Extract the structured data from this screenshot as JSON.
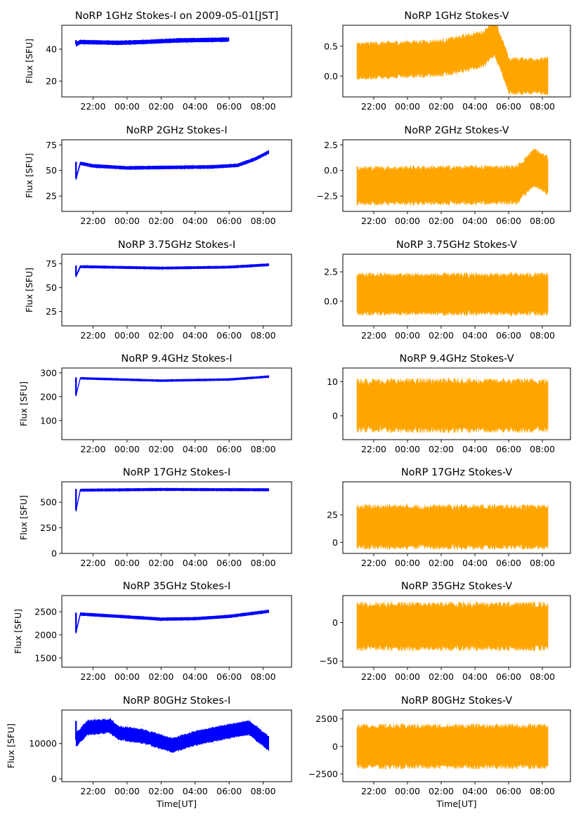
{
  "figure": {
    "x_tick_labels": [
      "22:00",
      "00:00",
      "02:00",
      "04:00",
      "06:00",
      "08:00"
    ],
    "xlabel": "Time[UT]",
    "ylabel_left": "Flux [SFU]",
    "colors": {
      "stokes_i": "#0000ff",
      "stokes_v": "#ffa500"
    }
  },
  "chart_data": [
    {
      "type": "scatter",
      "title": "NoRP 1GHz Stokes-I on 2009-05-01[JST]",
      "series": [
        {
          "name": "Stokes-I"
        }
      ],
      "ylabel": "Flux [SFU]",
      "xlabel": "",
      "xlim": [
        "2009-04-30T20:10",
        "2009-05-01T09:40"
      ],
      "ylim": [
        10,
        55
      ],
      "yticks": [
        20,
        40
      ],
      "data_range": [
        "2009-04-30T21:00",
        "2009-05-01T06:00"
      ],
      "level": [
        {
          "t": "2009-04-30T21:00",
          "v": 43
        },
        {
          "t": "2009-04-30T21:15",
          "v": 44.5
        },
        {
          "t": "2009-04-30T23:30",
          "v": 44
        },
        {
          "t": "2009-05-01T01:00",
          "v": 44.5
        },
        {
          "t": "2009-05-01T03:00",
          "v": 45.5
        },
        {
          "t": "2009-05-01T06:00",
          "v": 46
        }
      ],
      "spread": 1.2
    },
    {
      "type": "scatter",
      "title": "NoRP 1GHz Stokes-V",
      "series": [
        {
          "name": "Stokes-V"
        }
      ],
      "ylabel": "",
      "xlabel": "",
      "xlim": [
        "2009-04-30T20:10",
        "2009-05-01T09:40"
      ],
      "ylim": [
        -0.35,
        0.85
      ],
      "yticks": [
        0.0,
        0.5
      ],
      "data_range": [
        "2009-04-30T21:00",
        "2009-05-01T08:20"
      ],
      "level": [
        {
          "t": "2009-04-30T21:00",
          "v": 0.25
        },
        {
          "t": "2009-05-01T02:00",
          "v": 0.3
        },
        {
          "t": "2009-05-01T04:30",
          "v": 0.45
        },
        {
          "t": "2009-05-01T05:10",
          "v": 0.65
        },
        {
          "t": "2009-05-01T05:55",
          "v": 0.1
        },
        {
          "t": "2009-05-01T06:00",
          "v": 0.0
        },
        {
          "t": "2009-05-01T08:20",
          "v": 0.0
        }
      ],
      "spread": 0.28
    },
    {
      "type": "scatter",
      "title": "NoRP 2GHz Stokes-I",
      "series": [
        {
          "name": "Stokes-I"
        }
      ],
      "ylabel": "Flux [SFU]",
      "xlabel": "",
      "xlim": [
        "2009-04-30T20:10",
        "2009-05-01T09:40"
      ],
      "ylim": [
        10,
        80
      ],
      "yticks": [
        25,
        50,
        75
      ],
      "data_range": [
        "2009-04-30T21:00",
        "2009-05-01T08:20"
      ],
      "level": [
        {
          "t": "2009-04-30T21:00",
          "v": 42
        },
        {
          "t": "2009-04-30T21:15",
          "v": 57
        },
        {
          "t": "2009-04-30T22:00",
          "v": 54.5
        },
        {
          "t": "2009-05-01T00:00",
          "v": 52.5
        },
        {
          "t": "2009-05-01T05:00",
          "v": 53.5
        },
        {
          "t": "2009-05-01T06:30",
          "v": 55
        },
        {
          "t": "2009-05-01T07:30",
          "v": 61
        },
        {
          "t": "2009-05-01T08:20",
          "v": 68
        }
      ],
      "spread": 1.5
    },
    {
      "type": "scatter",
      "title": "NoRP 2GHz Stokes-V",
      "series": [
        {
          "name": "Stokes-V"
        }
      ],
      "ylabel": "",
      "xlabel": "",
      "xlim": [
        "2009-04-30T20:10",
        "2009-05-01T09:40"
      ],
      "ylim": [
        -4,
        3
      ],
      "yticks": [
        -2.5,
        0.0,
        2.5
      ],
      "data_range": [
        "2009-04-30T21:00",
        "2009-05-01T08:20"
      ],
      "level": [
        {
          "t": "2009-04-30T21:00",
          "v": -1.5
        },
        {
          "t": "2009-05-01T06:30",
          "v": -1.4
        },
        {
          "t": "2009-05-01T07:30",
          "v": 0.3
        },
        {
          "t": "2009-05-01T08:20",
          "v": -0.5
        }
      ],
      "spread": 1.7
    },
    {
      "type": "scatter",
      "title": "NoRP 3.75GHz Stokes-I",
      "series": [
        {
          "name": "Stokes-I"
        }
      ],
      "ylabel": "Flux [SFU]",
      "xlabel": "",
      "xlim": [
        "2009-04-30T20:10",
        "2009-05-01T09:40"
      ],
      "ylim": [
        10,
        85
      ],
      "yticks": [
        25,
        50,
        75
      ],
      "data_range": [
        "2009-04-30T21:00",
        "2009-05-01T08:20"
      ],
      "level": [
        {
          "t": "2009-04-30T21:00",
          "v": 62
        },
        {
          "t": "2009-04-30T21:15",
          "v": 72
        },
        {
          "t": "2009-05-01T02:00",
          "v": 70.5
        },
        {
          "t": "2009-05-01T06:00",
          "v": 71.5
        },
        {
          "t": "2009-05-01T08:20",
          "v": 74
        }
      ],
      "spread": 1.2
    },
    {
      "type": "scatter",
      "title": "NoRP 3.75GHz Stokes-V",
      "series": [
        {
          "name": "Stokes-V"
        }
      ],
      "ylabel": "",
      "xlabel": "",
      "xlim": [
        "2009-04-30T20:10",
        "2009-05-01T09:40"
      ],
      "ylim": [
        -2.1,
        4.0
      ],
      "yticks": [
        0.0,
        2.5
      ],
      "data_range": [
        "2009-04-30T21:00",
        "2009-05-01T08:20"
      ],
      "level": [
        {
          "t": "2009-04-30T21:00",
          "v": 0.6
        },
        {
          "t": "2009-05-01T08:20",
          "v": 0.6
        }
      ],
      "spread": 1.6
    },
    {
      "type": "scatter",
      "title": "NoRP 9.4GHz Stokes-I",
      "series": [
        {
          "name": "Stokes-I"
        }
      ],
      "ylabel": "Flux [SFU]",
      "xlabel": "",
      "xlim": [
        "2009-04-30T20:10",
        "2009-05-01T09:40"
      ],
      "ylim": [
        20,
        320
      ],
      "yticks": [
        100,
        200,
        300
      ],
      "data_range": [
        "2009-04-30T21:00",
        "2009-05-01T08:20"
      ],
      "level": [
        {
          "t": "2009-04-30T21:00",
          "v": 205
        },
        {
          "t": "2009-04-30T21:15",
          "v": 277
        },
        {
          "t": "2009-05-01T02:00",
          "v": 267
        },
        {
          "t": "2009-05-01T06:00",
          "v": 272
        },
        {
          "t": "2009-05-01T08:20",
          "v": 284
        }
      ],
      "spread": 4
    },
    {
      "type": "scatter",
      "title": "NoRP 9.4GHz Stokes-V",
      "series": [
        {
          "name": "Stokes-V"
        }
      ],
      "ylabel": "",
      "xlabel": "",
      "xlim": [
        "2009-04-30T20:10",
        "2009-05-01T09:40"
      ],
      "ylim": [
        -7,
        14
      ],
      "yticks": [
        0,
        10
      ],
      "data_range": [
        "2009-04-30T21:00",
        "2009-05-01T08:20"
      ],
      "level": [
        {
          "t": "2009-04-30T21:00",
          "v": 3
        },
        {
          "t": "2009-05-01T08:20",
          "v": 3
        }
      ],
      "spread": 7
    },
    {
      "type": "scatter",
      "title": "NoRP 17GHz Stokes-I",
      "series": [
        {
          "name": "Stokes-I"
        }
      ],
      "ylabel": "Flux [SFU]",
      "xlabel": "",
      "xlim": [
        "2009-04-30T20:10",
        "2009-05-01T09:40"
      ],
      "ylim": [
        0,
        700
      ],
      "yticks": [
        0,
        250,
        500
      ],
      "data_range": [
        "2009-04-30T21:00",
        "2009-05-01T08:20"
      ],
      "level": [
        {
          "t": "2009-04-30T21:00",
          "v": 420
        },
        {
          "t": "2009-04-30T21:15",
          "v": 618
        },
        {
          "t": "2009-05-01T02:00",
          "v": 625
        },
        {
          "t": "2009-05-01T08:20",
          "v": 622
        }
      ],
      "spread": 12
    },
    {
      "type": "scatter",
      "title": "NoRP 17GHz Stokes-V",
      "series": [
        {
          "name": "Stokes-V"
        }
      ],
      "ylabel": "",
      "xlabel": "",
      "xlim": [
        "2009-04-30T20:10",
        "2009-05-01T09:40"
      ],
      "ylim": [
        -10,
        55
      ],
      "yticks": [
        0,
        25
      ],
      "data_range": [
        "2009-04-30T21:00",
        "2009-05-01T08:20"
      ],
      "level": [
        {
          "t": "2009-04-30T21:00",
          "v": 14
        },
        {
          "t": "2009-05-01T08:20",
          "v": 14
        }
      ],
      "spread": 18
    },
    {
      "type": "scatter",
      "title": "NoRP 35GHz Stokes-I",
      "series": [
        {
          "name": "Stokes-I"
        }
      ],
      "ylabel": "Flux [SFU]",
      "xlabel": "",
      "xlim": [
        "2009-04-30T20:10",
        "2009-05-01T09:40"
      ],
      "ylim": [
        1300,
        2850
      ],
      "yticks": [
        1500,
        2000,
        2500
      ],
      "data_range": [
        "2009-04-30T21:00",
        "2009-05-01T08:20"
      ],
      "level": [
        {
          "t": "2009-04-30T21:00",
          "v": 2050
        },
        {
          "t": "2009-04-30T21:15",
          "v": 2450
        },
        {
          "t": "2009-04-30T23:30",
          "v": 2400
        },
        {
          "t": "2009-05-01T02:00",
          "v": 2340
        },
        {
          "t": "2009-05-01T04:00",
          "v": 2350
        },
        {
          "t": "2009-05-01T06:00",
          "v": 2400
        },
        {
          "t": "2009-05-01T08:20",
          "v": 2510
        }
      ],
      "spread": 30
    },
    {
      "type": "scatter",
      "title": "NoRP 35GHz Stokes-V",
      "series": [
        {
          "name": "Stokes-V"
        }
      ],
      "ylabel": "",
      "xlabel": "",
      "xlim": [
        "2009-04-30T20:10",
        "2009-05-01T09:40"
      ],
      "ylim": [
        -58,
        35
      ],
      "yticks": [
        -50,
        0
      ],
      "data_range": [
        "2009-04-30T21:00",
        "2009-05-01T08:20"
      ],
      "level": [
        {
          "t": "2009-04-30T21:00",
          "v": -5
        },
        {
          "t": "2009-05-01T08:20",
          "v": -5
        }
      ],
      "spread": 28
    },
    {
      "type": "scatter",
      "title": "NoRP 80GHz Stokes-I",
      "series": [
        {
          "name": "Stokes-I"
        }
      ],
      "ylabel": "Flux [SFU]",
      "xlabel": "Time[UT]",
      "xlim": [
        "2009-04-30T20:10",
        "2009-05-01T09:40"
      ],
      "ylim": [
        -800,
        19500
      ],
      "yticks": [
        0,
        10000
      ],
      "data_range": [
        "2009-04-30T21:00",
        "2009-05-01T08:20"
      ],
      "level": [
        {
          "t": "2009-04-30T21:00",
          "v": 11000
        },
        {
          "t": "2009-04-30T21:40",
          "v": 14500
        },
        {
          "t": "2009-04-30T23:00",
          "v": 15000
        },
        {
          "t": "2009-04-30T23:30",
          "v": 13000
        },
        {
          "t": "2009-05-01T01:00",
          "v": 12000
        },
        {
          "t": "2009-05-01T02:40",
          "v": 9500
        },
        {
          "t": "2009-05-01T04:00",
          "v": 11500
        },
        {
          "t": "2009-05-01T06:00",
          "v": 13500
        },
        {
          "t": "2009-05-01T07:10",
          "v": 14500
        },
        {
          "t": "2009-05-01T08:20",
          "v": 10000
        }
      ],
      "spread": 1900
    },
    {
      "type": "scatter",
      "title": "NoRP 80GHz Stokes-V",
      "series": [
        {
          "name": "Stokes-V"
        }
      ],
      "ylabel": "",
      "xlabel": "Time[UT]",
      "xlim": [
        "2009-04-30T20:10",
        "2009-05-01T09:40"
      ],
      "ylim": [
        -3200,
        3300
      ],
      "yticks": [
        -2500,
        0,
        2500
      ],
      "data_range": [
        "2009-04-30T21:00",
        "2009-05-01T08:20"
      ],
      "level": [
        {
          "t": "2009-04-30T21:00",
          "v": 0
        },
        {
          "t": "2009-05-01T08:20",
          "v": 0
        }
      ],
      "spread": 1800
    }
  ]
}
